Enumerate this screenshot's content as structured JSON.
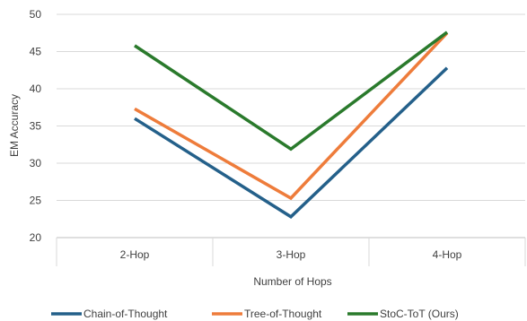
{
  "chart_data": {
    "type": "line",
    "title": "",
    "xlabel": "Number of Hops",
    "ylabel": "EM Accuracy",
    "categories": [
      "2-Hop",
      "3-Hop",
      "4-Hop"
    ],
    "ylim": [
      20,
      50
    ],
    "yticks": [
      20,
      25,
      30,
      35,
      40,
      45,
      50
    ],
    "grid": true,
    "legend_position": "bottom",
    "series": [
      {
        "name": "Chain-of-Thought",
        "values": [
          36.0,
          22.8,
          42.8
        ],
        "color": "#24608a"
      },
      {
        "name": "Tree-of-Thought",
        "values": [
          37.3,
          25.3,
          47.5
        ],
        "color": "#ee7c3b"
      },
      {
        "name": "StoC-ToT (Ours)",
        "values": [
          45.8,
          31.9,
          47.6
        ],
        "color": "#2a7a2c"
      }
    ]
  }
}
